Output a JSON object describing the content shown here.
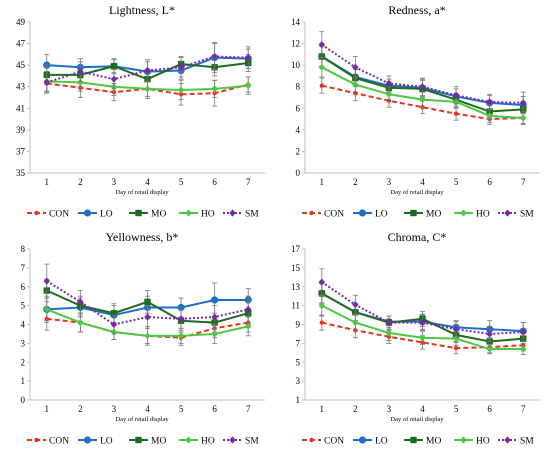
{
  "series_styles": [
    {
      "key": "CON",
      "color": "#e8341c",
      "dash": "5,3",
      "marker": "circle-small"
    },
    {
      "key": "LO",
      "color": "#1f6fc9",
      "dash": "",
      "marker": "circle"
    },
    {
      "key": "MO",
      "color": "#1e6b22",
      "dash": "",
      "marker": "square"
    },
    {
      "key": "HO",
      "color": "#4ec744",
      "dash": "",
      "marker": "diamond"
    },
    {
      "key": "SM",
      "color": "#7a2aa0",
      "dash": "2,2",
      "marker": "diamond"
    }
  ],
  "chart_data": [
    {
      "type": "line",
      "title": "Lightness, L*",
      "xlabel": "Day of retail display",
      "ylabel": "",
      "x": [
        1,
        2,
        3,
        4,
        5,
        6,
        7
      ],
      "ylim": [
        35,
        49
      ],
      "yticks": [
        35,
        37,
        39,
        41,
        43,
        45,
        47,
        49
      ],
      "grid": false,
      "legend": "bottom",
      "series": [
        {
          "name": "CON",
          "values": [
            43.3,
            42.9,
            42.5,
            42.8,
            42.3,
            42.4,
            43.2
          ],
          "errors": [
            0.8,
            0.9,
            0.8,
            0.9,
            1.0,
            1.2,
            0.7
          ]
        },
        {
          "name": "LO",
          "values": [
            45.0,
            44.8,
            44.9,
            44.4,
            44.5,
            45.7,
            45.6
          ],
          "errors": [
            1.0,
            0.8,
            0.7,
            0.9,
            0.8,
            1.4,
            0.9
          ]
        },
        {
          "name": "MO",
          "values": [
            44.1,
            44.1,
            44.9,
            43.7,
            45.1,
            44.8,
            45.2
          ],
          "errors": [
            0.9,
            0.8,
            0.6,
            0.9,
            0.7,
            0.8,
            0.8
          ]
        },
        {
          "name": "HO",
          "values": [
            43.5,
            43.4,
            43.0,
            42.8,
            42.7,
            42.8,
            43.1
          ],
          "errors": [
            0.9,
            0.8,
            0.8,
            0.7,
            0.9,
            0.8,
            0.8
          ]
        },
        {
          "name": "SM",
          "values": [
            43.4,
            44.4,
            43.7,
            44.5,
            44.8,
            45.8,
            45.7
          ],
          "errors": [
            1.0,
            0.9,
            0.9,
            1.0,
            0.9,
            1.2,
            1.0
          ]
        }
      ]
    },
    {
      "type": "line",
      "title": "Redness, a*",
      "xlabel": "Day of retail display",
      "ylabel": "",
      "x": [
        1,
        2,
        3,
        4,
        5,
        6,
        7
      ],
      "ylim": [
        0,
        14
      ],
      "yticks": [
        0,
        2,
        4,
        6,
        8,
        10,
        12,
        14
      ],
      "grid": false,
      "legend": "bottom",
      "series": [
        {
          "name": "CON",
          "values": [
            8.1,
            7.4,
            6.7,
            6.1,
            5.5,
            5.0,
            5.1
          ],
          "errors": [
            0.7,
            0.7,
            0.6,
            0.6,
            0.6,
            0.5,
            0.5
          ]
        },
        {
          "name": "LO",
          "values": [
            10.8,
            8.9,
            8.1,
            7.9,
            7.1,
            6.5,
            6.3
          ],
          "errors": [
            1.0,
            0.8,
            0.6,
            0.8,
            0.7,
            0.7,
            0.8
          ]
        },
        {
          "name": "MO",
          "values": [
            10.8,
            8.8,
            7.9,
            7.8,
            6.8,
            5.7,
            5.9
          ],
          "errors": [
            0.9,
            0.8,
            0.6,
            0.8,
            0.6,
            0.6,
            0.7
          ]
        },
        {
          "name": "HO",
          "values": [
            9.8,
            8.2,
            7.3,
            6.8,
            6.6,
            5.3,
            5.1
          ],
          "errors": [
            0.9,
            0.7,
            0.7,
            0.7,
            0.6,
            0.6,
            0.6
          ]
        },
        {
          "name": "SM",
          "values": [
            11.9,
            9.8,
            8.3,
            8.0,
            7.2,
            6.6,
            6.5
          ],
          "errors": [
            1.2,
            1.0,
            0.7,
            0.8,
            0.8,
            0.7,
            1.0
          ]
        }
      ]
    },
    {
      "type": "line",
      "title": "Yellowness, b*",
      "xlabel": "Day of retail display",
      "ylabel": "",
      "x": [
        1,
        2,
        3,
        4,
        5,
        6,
        7
      ],
      "ylim": [
        0,
        8
      ],
      "yticks": [
        0,
        1,
        2,
        3,
        4,
        5,
        6,
        7,
        8
      ],
      "grid": false,
      "legend": "bottom",
      "series": [
        {
          "name": "CON",
          "values": [
            4.3,
            4.1,
            3.6,
            3.4,
            3.3,
            3.8,
            4.1
          ],
          "errors": [
            0.6,
            0.5,
            0.4,
            0.4,
            0.4,
            0.5,
            0.5
          ]
        },
        {
          "name": "LO",
          "values": [
            4.8,
            4.9,
            4.5,
            4.9,
            4.9,
            5.3,
            5.3
          ],
          "errors": [
            0.7,
            0.5,
            0.5,
            0.6,
            0.5,
            0.9,
            0.6
          ]
        },
        {
          "name": "MO",
          "values": [
            5.8,
            5.0,
            4.6,
            5.2,
            4.2,
            4.1,
            4.6
          ],
          "errors": [
            0.6,
            0.5,
            0.5,
            0.6,
            0.6,
            0.5,
            0.6
          ]
        },
        {
          "name": "HO",
          "values": [
            4.8,
            4.1,
            3.6,
            3.4,
            3.4,
            3.5,
            3.9
          ],
          "errors": [
            0.6,
            0.5,
            0.4,
            0.5,
            0.4,
            0.5,
            0.5
          ]
        },
        {
          "name": "SM",
          "values": [
            6.3,
            5.2,
            4.0,
            4.4,
            4.3,
            4.4,
            4.8
          ],
          "errors": [
            0.9,
            0.6,
            0.5,
            0.6,
            0.5,
            0.6,
            0.7
          ]
        }
      ]
    },
    {
      "type": "line",
      "title": "Chroma, C*",
      "xlabel": "Day of retail display",
      "ylabel": "",
      "x": [
        1,
        2,
        3,
        4,
        5,
        6,
        7
      ],
      "ylim": [
        1,
        17
      ],
      "yticks": [
        1,
        3,
        5,
        7,
        9,
        11,
        13,
        15,
        17
      ],
      "grid": false,
      "legend": "bottom",
      "series": [
        {
          "name": "CON",
          "values": [
            9.2,
            8.4,
            7.7,
            7.1,
            6.5,
            6.6,
            6.8
          ],
          "errors": [
            0.8,
            0.8,
            0.7,
            0.7,
            0.6,
            0.6,
            0.6
          ]
        },
        {
          "name": "LO",
          "values": [
            12.3,
            10.3,
            9.3,
            9.3,
            8.7,
            8.5,
            8.3
          ],
          "errors": [
            1.0,
            0.9,
            0.6,
            0.8,
            0.7,
            0.9,
            0.9
          ]
        },
        {
          "name": "MO",
          "values": [
            12.3,
            10.3,
            9.2,
            9.6,
            7.9,
            7.2,
            7.5
          ],
          "errors": [
            1.1,
            0.9,
            0.7,
            0.8,
            0.7,
            0.7,
            0.8
          ]
        },
        {
          "name": "HO",
          "values": [
            11.0,
            9.2,
            8.1,
            7.6,
            7.5,
            6.4,
            6.4
          ],
          "errors": [
            1.1,
            0.8,
            0.8,
            0.7,
            0.7,
            0.5,
            0.6
          ]
        },
        {
          "name": "SM",
          "values": [
            13.5,
            11.1,
            9.2,
            9.2,
            8.5,
            8.0,
            8.2
          ],
          "errors": [
            1.4,
            1.0,
            0.7,
            0.8,
            0.8,
            0.8,
            1.0
          ]
        }
      ]
    }
  ]
}
